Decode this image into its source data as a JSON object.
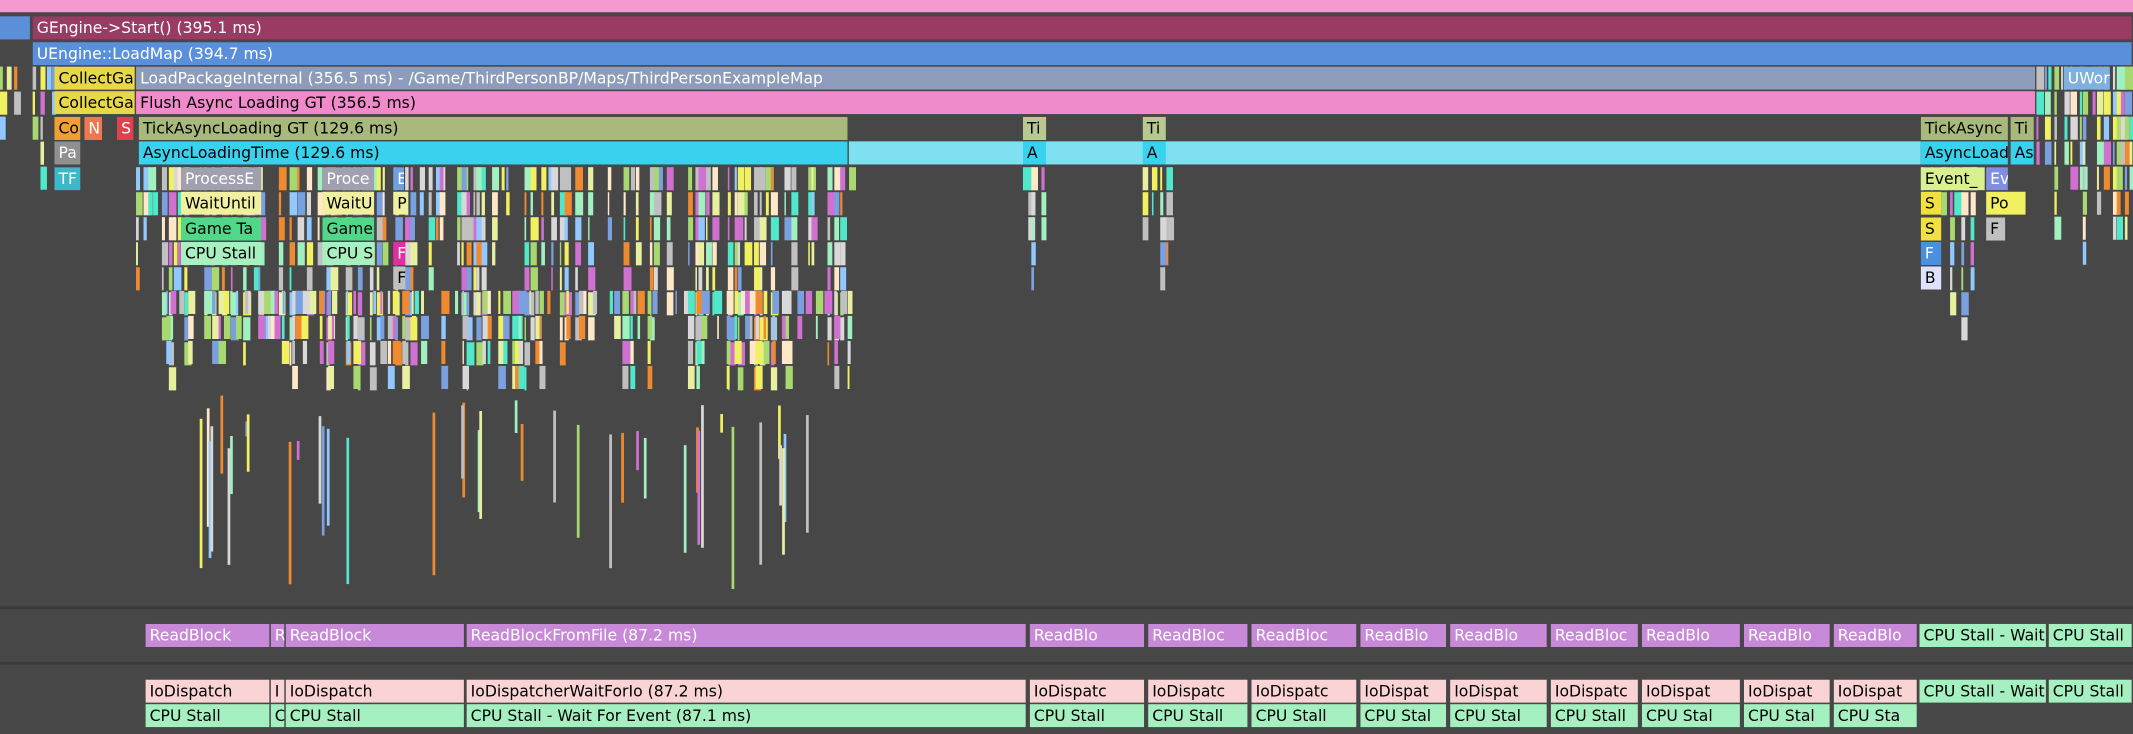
{
  "rows": [
    [
      "GEngine->Start() (395.1 ms)"
    ],
    [
      "UEngine::LoadMap (394.7 ms)"
    ],
    [
      "CollectGa",
      "LoadPackageInternal (356.5 ms) - /Game/ThirdPersonBP/Maps/ThirdPersonExampleMap",
      "UWor"
    ],
    [
      "CollectGa",
      "Flush Async Loading GT (356.5 ms)"
    ],
    [
      "Co",
      "N",
      "S",
      "TickAsyncLoading GT (129.6 ms)",
      "Ti",
      "Ti",
      "TickAsync",
      "Ti"
    ],
    [
      "Pa",
      "AsyncLoadingTime (129.6 ms)",
      "A",
      "A",
      "AsyncLoad",
      "As"
    ],
    [
      "TF",
      "ProcessE",
      "Proce",
      "E",
      "Event_",
      "Ev"
    ],
    [
      "WaitUntil",
      "WaitU",
      "P",
      "S",
      "Po"
    ],
    [
      "Game Ta",
      "Game",
      "S",
      "F"
    ],
    [
      "CPU Stall",
      "CPU S",
      "F",
      "F"
    ],
    [
      "F",
      "B"
    ]
  ],
  "io_rows": [
    [
      "ReadBlock",
      "R",
      "ReadBlock",
      "ReadBlockFromFile (87.2 ms)",
      "ReadBlo",
      "ReadBloc",
      "ReadBloc",
      "ReadBlo",
      "ReadBlo",
      "ReadBloc",
      "ReadBlo",
      "ReadBlo",
      "ReadBlo",
      "CPU Stall - Wait",
      "CPU Stall"
    ],
    [
      "IoDispatch",
      "I",
      "IoDispatch",
      "IoDispatcherWaitForIo (87.2 ms)",
      "IoDispatc",
      "IoDispatc",
      "IoDispatc",
      "IoDispat",
      "IoDispat",
      "IoDispatc",
      "IoDispat",
      "IoDispat",
      "IoDispat",
      "CPU Stall - Wait",
      "CPU Stall"
    ],
    [
      "CPU Stall",
      "C",
      "CPU Stall",
      "CPU Stall - Wait For Event (87.1 ms)",
      "CPU Stall",
      "CPU Stall",
      "CPU Stall",
      "CPU Stal",
      "CPU Stal",
      "CPU Stall",
      "CPU Stal",
      "CPU Stal",
      "CPU Sta"
    ]
  ]
}
